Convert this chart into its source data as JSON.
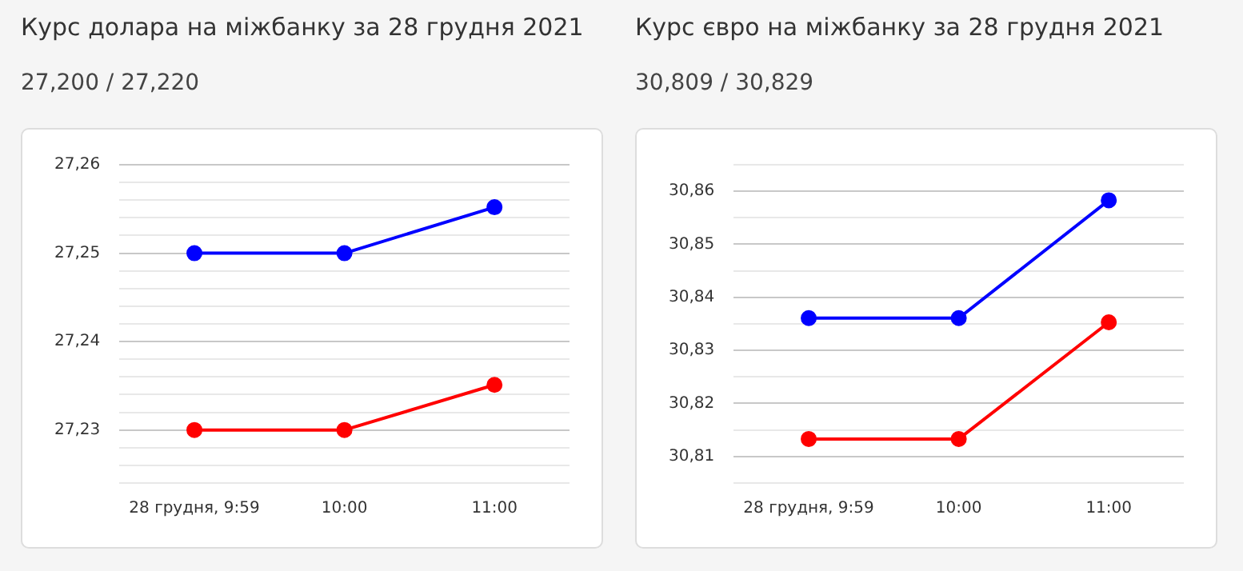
{
  "chart_data": [
    {
      "type": "line",
      "title": "Курс долара на міжбанку за 28 грудня 2021",
      "subtitle": "27,200 / 27,220",
      "categories": [
        "28 грудня, 9:59",
        "10:00",
        "11:00"
      ],
      "series": [
        {
          "color": "#0000ff",
          "values": [
            27.25,
            27.25,
            27.2552
          ]
        },
        {
          "color": "#ff0000",
          "values": [
            27.23,
            27.23,
            27.2351
          ]
        }
      ],
      "ylim": [
        27.224,
        27.26
      ],
      "yticks": [
        {
          "value": 27.224,
          "label": null
        },
        {
          "value": 27.226,
          "label": null
        },
        {
          "value": 27.228,
          "label": null
        },
        {
          "value": 27.23,
          "label": "27,23"
        },
        {
          "value": 27.232,
          "label": null
        },
        {
          "value": 27.234,
          "label": null
        },
        {
          "value": 27.236,
          "label": null
        },
        {
          "value": 27.238,
          "label": null
        },
        {
          "value": 27.24,
          "label": "27,24"
        },
        {
          "value": 27.242,
          "label": null
        },
        {
          "value": 27.244,
          "label": null
        },
        {
          "value": 27.246,
          "label": null
        },
        {
          "value": 27.248,
          "label": null
        },
        {
          "value": 27.25,
          "label": "27,25"
        },
        {
          "value": 27.252,
          "label": null
        },
        {
          "value": 27.254,
          "label": null
        },
        {
          "value": 27.256,
          "label": null
        },
        {
          "value": 27.258,
          "label": null
        },
        {
          "value": 27.26,
          "label": "27,26"
        }
      ],
      "grid": "y",
      "legend": false,
      "marker": "circle",
      "line_style": "solid"
    },
    {
      "type": "line",
      "title": "Курс євро на міжбанку за 28 грудня 2021",
      "subtitle": "30,809 / 30,829",
      "categories": [
        "28 грудня, 9:59",
        "10:00",
        "11:00"
      ],
      "series": [
        {
          "color": "#0000ff",
          "values": [
            30.8361,
            30.8361,
            30.8583
          ]
        },
        {
          "color": "#ff0000",
          "values": [
            30.8133,
            30.8133,
            30.8353
          ]
        }
      ],
      "ylim": [
        30.805,
        30.865
      ],
      "yticks": [
        {
          "value": 30.805,
          "label": null
        },
        {
          "value": 30.81,
          "label": "30,81"
        },
        {
          "value": 30.815,
          "label": null
        },
        {
          "value": 30.82,
          "label": "30,82"
        },
        {
          "value": 30.825,
          "label": null
        },
        {
          "value": 30.83,
          "label": "30,83"
        },
        {
          "value": 30.835,
          "label": null
        },
        {
          "value": 30.84,
          "label": "30,84"
        },
        {
          "value": 30.845,
          "label": null
        },
        {
          "value": 30.85,
          "label": "30,85"
        },
        {
          "value": 30.855,
          "label": null
        },
        {
          "value": 30.86,
          "label": "30,86"
        },
        {
          "value": 30.865,
          "label": null
        }
      ],
      "grid": "y",
      "legend": false,
      "marker": "circle",
      "line_style": "solid"
    }
  ]
}
